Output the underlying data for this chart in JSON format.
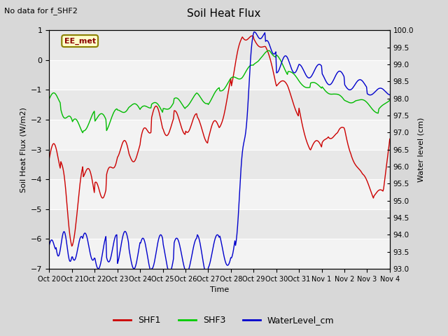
{
  "title": "Soil Heat Flux",
  "note": "No data for f_SHF2",
  "ylabel_left": "Soil Heat Flux (W/m2)",
  "ylabel_right": "Water level (cm)",
  "xlabel": "Time",
  "ylim_left": [
    -7.0,
    1.0
  ],
  "ylim_right": [
    93.0,
    100.0
  ],
  "yticks_left": [
    -7.0,
    -6.0,
    -5.0,
    -4.0,
    -3.0,
    -2.0,
    -1.0,
    0.0,
    1.0
  ],
  "yticks_right": [
    93.0,
    93.5,
    94.0,
    94.5,
    95.0,
    95.5,
    96.0,
    96.5,
    97.0,
    97.5,
    98.0,
    98.5,
    99.0,
    99.5,
    100.0
  ],
  "xtick_labels": [
    "Oct 20",
    "Oct 21",
    "Oct 22",
    "Oct 23",
    "Oct 24",
    "Oct 25",
    "Oct 26",
    "Oct 27",
    "Oct 28",
    "Oct 29",
    "Oct 30",
    "Oct 31",
    "Nov 1",
    "Nov 2",
    "Nov 3",
    "Nov 4"
  ],
  "legend_labels": [
    "SHF1",
    "SHF3",
    "WaterLevel_cm"
  ],
  "legend_colors": [
    "#cc0000",
    "#00cc00",
    "#0000cc"
  ],
  "box_label": "EE_met",
  "background_color": "#d8d8d8",
  "plot_bg_color": "#e8e8e8",
  "shf1_color": "#cc0000",
  "shf3_color": "#00bb00",
  "wl_color": "#0000cc",
  "n_points": 500
}
